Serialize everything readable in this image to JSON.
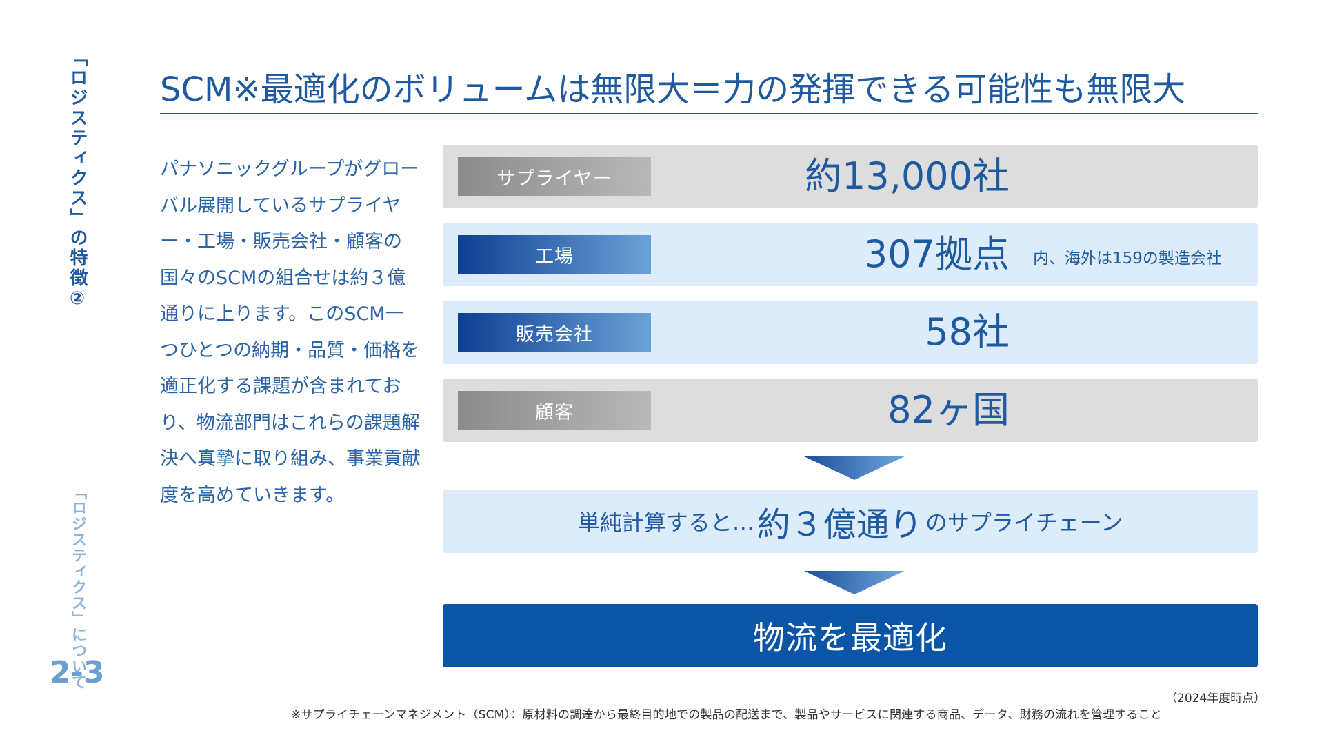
{
  "sidebar": {
    "title": "「ロジスティクス」の特徴②",
    "section": "「ロジスティクス」について",
    "page_number": "2-3"
  },
  "header": {
    "title": "SCM※最適化のボリュームは無限大＝力の発揮できる可能性も無限大"
  },
  "description": "パナソニックグループがグローバル展開しているサプライヤー・工場・販売会社・顧客の国々のSCMの組合せは約３億通りに上ります。このSCM一つひとつの納期・品質・価格を適正化する課題が含まれており、物流部門はこれらの課題解決へ真摯に取り組み、事業貢献度を高めていきます。",
  "rows": [
    {
      "label": "サプライヤー",
      "value": "約13,000社",
      "note": ""
    },
    {
      "label": "工場",
      "value": "307拠点",
      "note": "内、海外は159の製造会社"
    },
    {
      "label": "販売会社",
      "value": "58社",
      "note": ""
    },
    {
      "label": "顧客",
      "value": "82ヶ国",
      "note": ""
    }
  ],
  "result": {
    "prefix": "単純計算すると…",
    "highlight": "約３億通り",
    "suffix": "のサプライチェーン"
  },
  "final": "物流を最適化",
  "footer": {
    "as_of": "（2024年度時点）",
    "footnote": "※サプライチェーンマネジメント（SCM）：原材料の調達から最終目的地での製品の配送まで、製品やサービスに関連する商品、データ、財務の流れを管理すること"
  },
  "colors": {
    "primary": "#1f5aa0",
    "dark_blue": "#0b55a6",
    "light_blue_bg": "#dcecfa",
    "gray_bg": "#dddddd"
  }
}
